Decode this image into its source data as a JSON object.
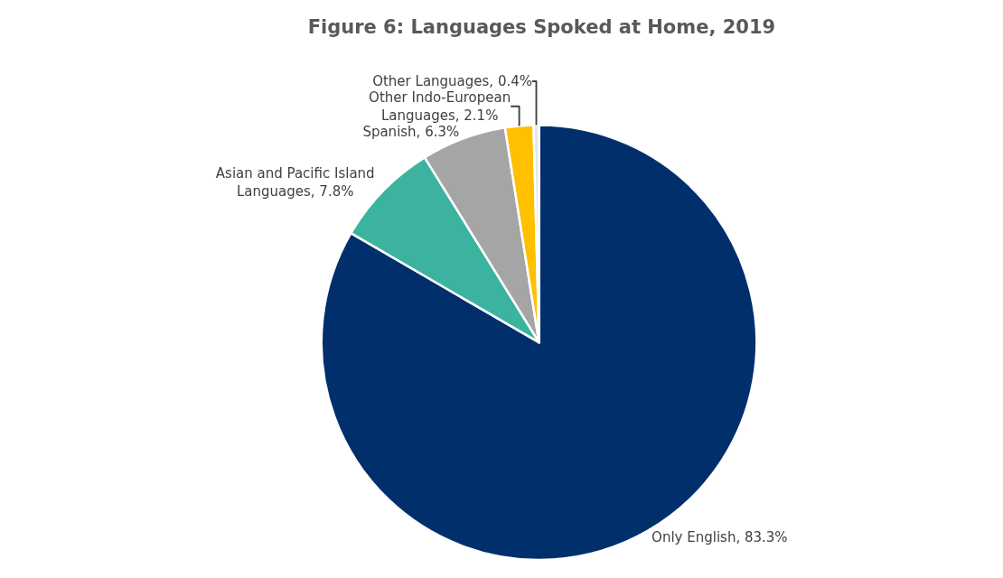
{
  "chart_data": {
    "type": "pie",
    "title": "Figure 6: Languages Spoked at Home, 2019",
    "categories": [
      "Only English",
      "Asian and Pacific Island Languages",
      "Spanish",
      "Other Indo-European Languages",
      "Other Languages"
    ],
    "values": [
      83.3,
      7.8,
      6.3,
      2.1,
      0.4
    ],
    "value_labels": [
      "83.3%",
      "7.8%",
      "6.3%",
      "2.1%",
      "0.4%"
    ],
    "colors": [
      "#002f6c",
      "#3bb39f",
      "#a5a5a5",
      "#ffc000",
      "#e7e6e6"
    ],
    "legend": false
  }
}
